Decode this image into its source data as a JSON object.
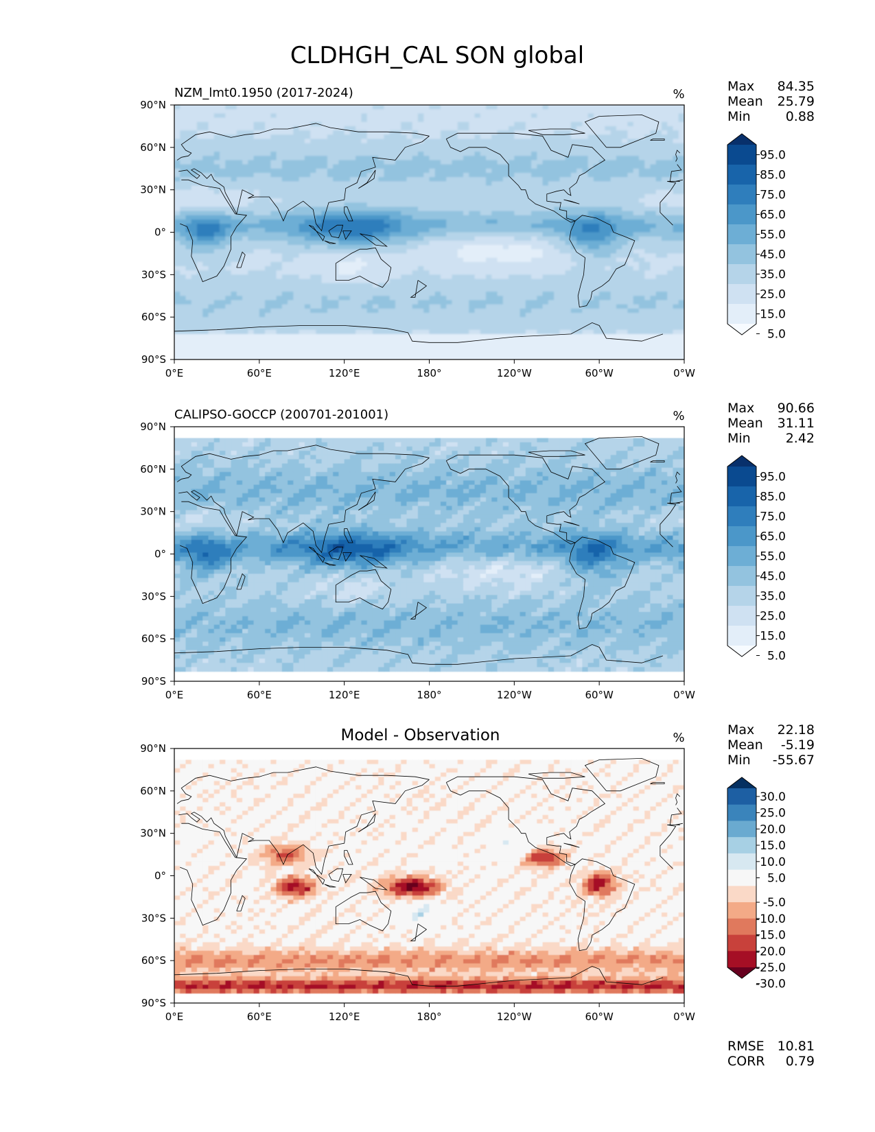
{
  "figure": {
    "title": "CLDHGH_CAL SON global"
  },
  "panels": [
    {
      "id": "model",
      "label": "NZM_lmt0.1950 (2017-2024)",
      "center_title": "",
      "units": "%",
      "palette": "blues",
      "stats": [
        {
          "name": "Max",
          "value": "84.35"
        },
        {
          "name": "Mean",
          "value": "25.79"
        },
        {
          "name": "Min",
          "value": "0.88"
        }
      ],
      "extra_stats": []
    },
    {
      "id": "obs",
      "label": "CALIPSO-GOCCP (200701-201001)",
      "center_title": "",
      "units": "%",
      "palette": "blues",
      "stats": [
        {
          "name": "Max",
          "value": "90.66"
        },
        {
          "name": "Mean",
          "value": "31.11"
        },
        {
          "name": "Min",
          "value": "2.42"
        }
      ],
      "extra_stats": []
    },
    {
      "id": "diff",
      "label": "",
      "center_title": "Model - Observation",
      "units": "%",
      "palette": "rdbu",
      "stats": [
        {
          "name": "Max",
          "value": "22.18"
        },
        {
          "name": "Mean",
          "value": "-5.19"
        },
        {
          "name": "Min",
          "value": "-55.67"
        }
      ],
      "extra_stats": [
        {
          "name": "RMSE",
          "value": "10.81"
        },
        {
          "name": "CORR",
          "value": "0.79"
        }
      ]
    }
  ],
  "axes": {
    "x_ticks": [
      "0°E",
      "60°E",
      "120°E",
      "180°",
      "120°W",
      "60°W",
      "0°W"
    ],
    "y_ticks": [
      "90°N",
      "60°N",
      "30°N",
      "0°",
      "30°S",
      "60°S",
      "90°S"
    ]
  },
  "colors": {
    "blues": [
      "#f7fbff",
      "#e3eef9",
      "#cfe1f2",
      "#b5d4e9",
      "#93c3df",
      "#6daed5",
      "#4b97c9",
      "#2f7ebc",
      "#1864aa",
      "#0a4a90",
      "#08306b"
    ],
    "rdbu": [
      "#67001f",
      "#a50f25",
      "#c8413b",
      "#e0795d",
      "#f3aa87",
      "#fad9c7",
      "#f7f7f7",
      "#d7e8f1",
      "#a7d0e4",
      "#6aaad0",
      "#3a84bb",
      "#1d5fa3",
      "#053061"
    ],
    "coast": "#000000"
  },
  "chart_data": [
    {
      "type": "heatmap",
      "title": "NZM_lmt0.1950 (2017-2024)",
      "units": "%",
      "lon_range": [
        0,
        360
      ],
      "lat_range": [
        -90,
        90
      ],
      "xticks": [
        "0°E",
        "60°E",
        "120°E",
        "180°",
        "120°W",
        "60°W",
        "0°W"
      ],
      "yticks": [
        "90°N",
        "60°N",
        "30°N",
        "0°",
        "30°S",
        "60°S",
        "90°S"
      ],
      "colorbar_levels": [
        0,
        10,
        20,
        30,
        40,
        50,
        60,
        70,
        80,
        90,
        100
      ],
      "colorbar_labels": [
        "95.0",
        "85.0",
        "75.0",
        "65.0",
        "55.0",
        "45.0",
        "35.0",
        "25.0",
        "15.0",
        "5.0"
      ],
      "colorbar_extend": "both",
      "stats": {
        "max": 84.35,
        "mean": 25.79,
        "min": 0.88
      }
    },
    {
      "type": "heatmap",
      "title": "CALIPSO-GOCCP (200701-201001)",
      "units": "%",
      "lon_range": [
        0,
        360
      ],
      "lat_range": [
        -90,
        90
      ],
      "data_lat_range": [
        -82,
        82
      ],
      "xticks": [
        "0°E",
        "60°E",
        "120°E",
        "180°",
        "120°W",
        "60°W",
        "0°W"
      ],
      "yticks": [
        "90°N",
        "60°N",
        "30°N",
        "0°",
        "30°S",
        "60°S",
        "90°S"
      ],
      "colorbar_levels": [
        0,
        10,
        20,
        30,
        40,
        50,
        60,
        70,
        80,
        90,
        100
      ],
      "colorbar_labels": [
        "95.0",
        "85.0",
        "75.0",
        "65.0",
        "55.0",
        "45.0",
        "35.0",
        "25.0",
        "15.0",
        "5.0"
      ],
      "colorbar_extend": "both",
      "stats": {
        "max": 90.66,
        "mean": 31.11,
        "min": 2.42
      }
    },
    {
      "type": "heatmap",
      "title": "Model - Observation",
      "units": "%",
      "lon_range": [
        0,
        360
      ],
      "lat_range": [
        -90,
        90
      ],
      "data_lat_range": [
        -82,
        82
      ],
      "xticks": [
        "0°E",
        "60°E",
        "120°E",
        "180°",
        "120°W",
        "60°W",
        "0°W"
      ],
      "yticks": [
        "90°N",
        "60°N",
        "30°N",
        "0°",
        "30°S",
        "60°S",
        "90°S"
      ],
      "colorbar_levels": [
        -35,
        -30,
        -25,
        -20,
        -15,
        -10,
        -5,
        5,
        10,
        15,
        20,
        25,
        30,
        35
      ],
      "colorbar_labels": [
        "30.0",
        "25.0",
        "20.0",
        "15.0",
        "10.0",
        "5.0",
        "-5.0",
        "-10.0",
        "-15.0",
        "-20.0",
        "-25.0",
        "-30.0"
      ],
      "colorbar_extend": "both",
      "stats": {
        "max": 22.18,
        "mean": -5.19,
        "min": -55.67,
        "rmse": 10.81,
        "corr": 0.79
      }
    }
  ]
}
